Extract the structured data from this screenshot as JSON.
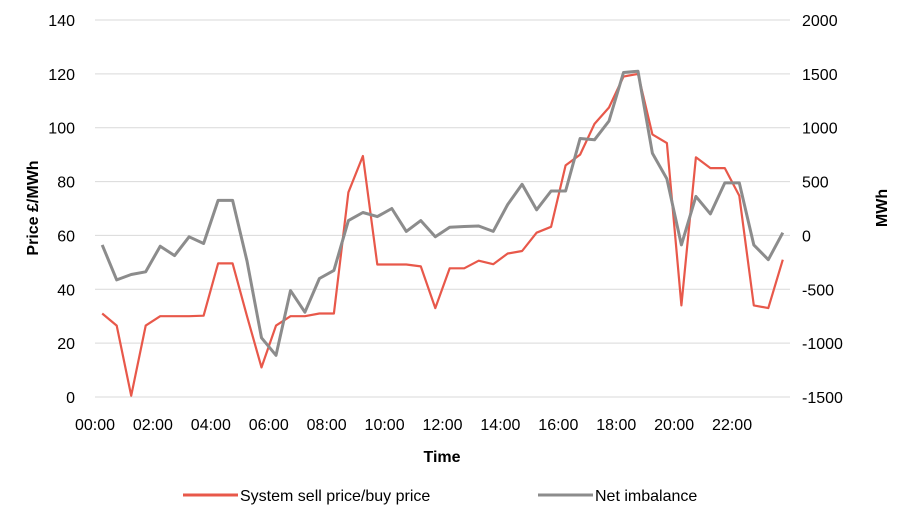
{
  "chart_data": {
    "type": "line",
    "xlabel": "Time",
    "ylabel_left": "Price £/MWh",
    "ylabel_right": "MWh",
    "ylim_left": [
      0,
      140
    ],
    "ylim_right": [
      -1500,
      2000
    ],
    "y_ticks_left": [
      "0",
      "20",
      "40",
      "60",
      "80",
      "100",
      "120",
      "140"
    ],
    "y_ticks_right": [
      "-1500",
      "-1000",
      "-500",
      "0",
      "500",
      "1000",
      "1500",
      "2000"
    ],
    "x_ticks": [
      "00:00",
      "02:00",
      "04:00",
      "06:00",
      "08:00",
      "10:00",
      "12:00",
      "14:00",
      "16:00",
      "18:00",
      "20:00",
      "22:00"
    ],
    "grid": "horizontal",
    "legend_position": "bottom",
    "colors": {
      "price": "#e8584a",
      "imbalance": "#8c8c8c"
    },
    "series": [
      {
        "name": "System sell price/buy price",
        "axis": "left",
        "values": [
          31,
          26.5,
          0.5,
          26.5,
          30,
          30,
          30,
          30.2,
          49.6,
          49.6,
          30,
          11,
          26.5,
          30,
          30,
          31,
          31,
          76,
          89.5,
          49.2,
          49.2,
          49.2,
          48.5,
          33,
          47.8,
          47.8,
          50.6,
          49.3,
          53.3,
          54.2,
          61,
          63.2,
          86,
          90,
          101.4,
          107.5,
          119,
          120,
          97.5,
          94.3,
          34,
          89,
          85,
          85,
          74.7,
          34,
          33,
          51
        ]
      },
      {
        "name": "Net imbalance",
        "axis": "left",
        "values": [
          56.5,
          43.5,
          45.5,
          46.5,
          56,
          52.5,
          59.5,
          57,
          73,
          73,
          50.5,
          22,
          15.5,
          39.5,
          31.5,
          44,
          47,
          65.5,
          68.5,
          67,
          70,
          61.5,
          65.5,
          59.5,
          63,
          63.3,
          63.5,
          61.5,
          71.5,
          79,
          69.5,
          76.5,
          76.5,
          96,
          95.5,
          102.5,
          120.5,
          121,
          90.5,
          81,
          56.5,
          74.5,
          68,
          79.5,
          79.5,
          56.5,
          51,
          61
        ]
      }
    ]
  }
}
